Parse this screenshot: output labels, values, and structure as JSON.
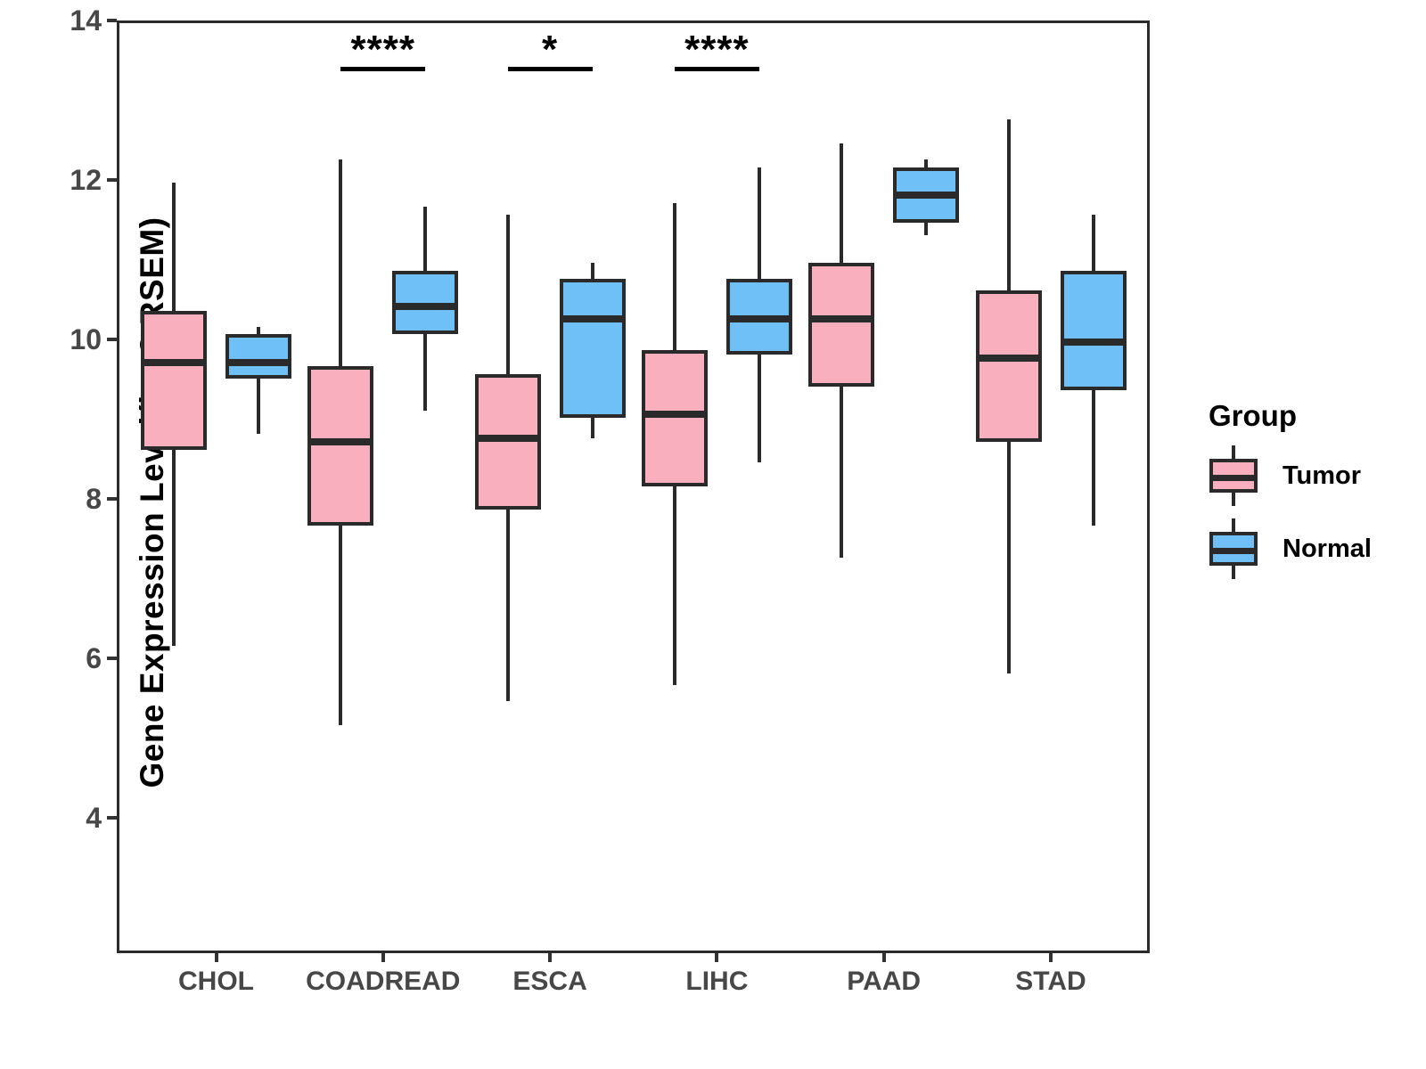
{
  "chart_data": {
    "type": "boxplot",
    "title": "",
    "xlabel": "",
    "ylabel": "Gene Expression Level(log2 RSEM)",
    "categories": [
      "CHOL",
      "COADREAD",
      "ESCA",
      "LIHC",
      "PAAD",
      "STAD"
    ],
    "y_ticks": [
      4,
      6,
      8,
      10,
      12,
      14
    ],
    "y_axis_range_shown": [
      2.3,
      14.0
    ],
    "grid": "off",
    "legend": {
      "title": "Group",
      "position": "right",
      "entries": [
        {
          "label": "Tumor",
          "color": "#F9AFBE"
        },
        {
          "label": "Normal",
          "color": "#70C0F8"
        }
      ]
    },
    "series": [
      {
        "name": "Tumor",
        "color": "#F9AFBE",
        "boxes": [
          {
            "category": "CHOL",
            "min": 6.2,
            "q1": 8.65,
            "median": 9.75,
            "q3": 10.4,
            "max": 12.0
          },
          {
            "category": "COADREAD",
            "min": 5.2,
            "q1": 7.7,
            "median": 8.75,
            "q3": 9.7,
            "max": 12.3
          },
          {
            "category": "ESCA",
            "min": 5.5,
            "q1": 7.9,
            "median": 8.8,
            "q3": 9.6,
            "max": 11.6
          },
          {
            "category": "LIHC",
            "min": 5.7,
            "q1": 8.2,
            "median": 9.1,
            "q3": 9.9,
            "max": 11.75
          },
          {
            "category": "PAAD",
            "min": 7.3,
            "q1": 9.45,
            "median": 10.3,
            "q3": 11.0,
            "max": 12.5
          },
          {
            "category": "STAD",
            "min": 5.85,
            "q1": 8.75,
            "median": 9.8,
            "q3": 10.65,
            "max": 12.8
          }
        ]
      },
      {
        "name": "Normal",
        "color": "#70C0F8",
        "boxes": [
          {
            "category": "CHOL",
            "min": 8.85,
            "q1": 9.55,
            "median": 9.75,
            "q3": 10.1,
            "max": 10.2
          },
          {
            "category": "COADREAD",
            "min": 9.15,
            "q1": 10.1,
            "median": 10.45,
            "q3": 10.9,
            "max": 11.7
          },
          {
            "category": "ESCA",
            "min": 8.8,
            "q1": 9.05,
            "median": 10.3,
            "q3": 10.8,
            "max": 11.0
          },
          {
            "category": "LIHC",
            "min": 8.5,
            "q1": 9.85,
            "median": 10.3,
            "q3": 10.8,
            "max": 12.2
          },
          {
            "category": "PAAD",
            "min": 11.35,
            "q1": 11.5,
            "median": 11.85,
            "q3": 12.2,
            "max": 12.3
          },
          {
            "category": "STAD",
            "min": 7.7,
            "q1": 9.4,
            "median": 10.0,
            "q3": 10.9,
            "max": 11.6
          }
        ]
      }
    ],
    "significance": [
      {
        "category": "COADREAD",
        "label": "****"
      },
      {
        "category": "ESCA",
        "label": "*"
      },
      {
        "category": "LIHC",
        "label": "****"
      }
    ]
  }
}
